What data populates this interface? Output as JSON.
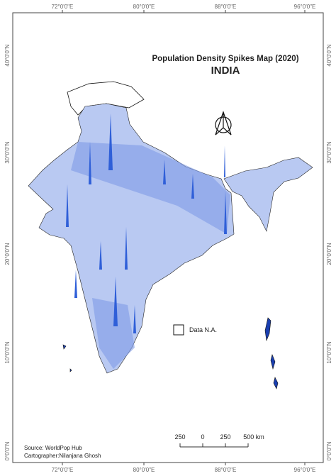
{
  "header": {
    "title": "Population Density Spikes Map (2020)",
    "subtitle": "INDIA"
  },
  "graticule": {
    "top": [
      "72°0'0\"E",
      "80°0'0\"E",
      "88°0'0\"E",
      "96°0'0\"E"
    ],
    "bottom": [
      "72°0'0\"E",
      "80°0'0\"E",
      "88°0'0\"E",
      "96°0'0\"E"
    ],
    "left": [
      "40°0'0\"N",
      "30°0'0\"N",
      "20°0'0\"N",
      "10°0'0\"N",
      "0°0'0\"N"
    ],
    "right": [
      "40°0'0\"N",
      "30°0'0\"N",
      "20°0'0\"N",
      "10°0'0\"N",
      "0°0'0\"N"
    ]
  },
  "legend": {
    "label": "Data N.A."
  },
  "scale_bar": [
    "250",
    "0",
    "250",
    "500 km"
  ],
  "footer": {
    "source": "Source: WorldPop Hub",
    "cartographer": "Cartographer:Nilanjana Ghosh"
  }
}
